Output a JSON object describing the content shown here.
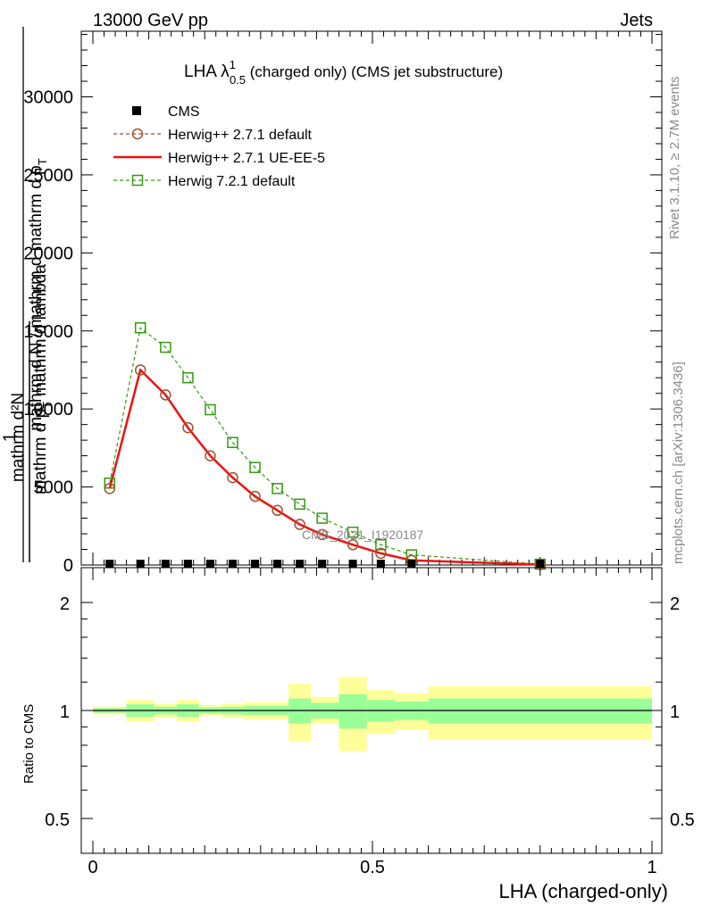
{
  "header": {
    "left": "13000 GeV pp",
    "right": "Jets"
  },
  "plot_title": {
    "main": "LHA λ",
    "sup": "1",
    "sub": "0.5",
    "rest": " (charged only) (CMS jet substructure)"
  },
  "side_text": {
    "rivet": "Rivet 3.1.10, ≥ 2.7M events",
    "mcplots": "mcplots.cern.ch [arXiv:1306.3436]"
  },
  "watermark": "CMS_2021_I1920187",
  "ylabel": {
    "line1": "1",
    "line2a": "mathrm d N / mathrm d",
    "line2b": "mathrm d p",
    "line2c": "T",
    "line3a": "mathrm d²N",
    "line3b": "mathrm d p",
    "line3c": "T",
    "line3d": "mathrm d lambda"
  },
  "ratio_ylabel": "Ratio to CMS",
  "xlabel": "LHA (charged-only)",
  "legend": [
    {
      "name": "CMS",
      "style": "data"
    },
    {
      "name": "Herwig++ 2.7.1 default",
      "style": "circle-dashed"
    },
    {
      "name": "Herwig++ 2.7.1 UE-EE-5",
      "style": "solid"
    },
    {
      "name": "Herwig 7.2.1 default",
      "style": "square-dashed"
    }
  ],
  "colors": {
    "data": "#000000",
    "herwigpp_default": "#a0522d",
    "herwigpp_ueee5": "#ee1111",
    "herwig7": "#339911",
    "band_inner": "#99ff99",
    "band_outer": "#ffff99"
  },
  "chart_data": [
    {
      "type": "line",
      "panel": "main",
      "xlim": [
        0,
        1
      ],
      "ylim": [
        0,
        35000
      ],
      "y_ticks": [
        {
          "v": 0,
          "label": "0"
        },
        {
          "v": 5000,
          "label": "5000"
        },
        {
          "v": 10000,
          "label": "10000"
        },
        {
          "v": 15000,
          "label": "15000"
        },
        {
          "v": 20000,
          "label": "20000"
        },
        {
          "v": 25000,
          "label": "25000"
        },
        {
          "v": 30000,
          "label": "30000"
        }
      ],
      "x": [
        0.03,
        0.085,
        0.13,
        0.17,
        0.21,
        0.25,
        0.29,
        0.33,
        0.37,
        0.41,
        0.465,
        0.515,
        0.57,
        0.8
      ],
      "series": [
        {
          "name": "CMS",
          "values": [
            50,
            50,
            50,
            50,
            50,
            50,
            50,
            50,
            50,
            50,
            50,
            50,
            50,
            50
          ]
        },
        {
          "name": "Herwig++ 2.7.1 default",
          "values": [
            4900,
            12500,
            10900,
            8800,
            7000,
            5600,
            4400,
            3500,
            2600,
            1950,
            1300,
            750,
            300,
            30
          ]
        },
        {
          "name": "Herwig++ 2.7.1 UE-EE-5",
          "values": [
            4900,
            12500,
            10900,
            8800,
            7000,
            5600,
            4400,
            3500,
            2600,
            1950,
            1300,
            750,
            300,
            30
          ]
        },
        {
          "name": "Herwig 7.2.1 default",
          "values": [
            5250,
            15200,
            13950,
            12000,
            9950,
            7850,
            6250,
            4900,
            3900,
            3000,
            2100,
            1300,
            650,
            50
          ]
        }
      ]
    },
    {
      "type": "area",
      "panel": "ratio",
      "xlim": [
        0,
        1
      ],
      "ylim": [
        0.5,
        2.2
      ],
      "y_ticks": [
        {
          "v": 0.5,
          "label": "0.5"
        },
        {
          "v": 1,
          "label": "1"
        },
        {
          "v": 2,
          "label": "2"
        }
      ],
      "x_ticks": [
        {
          "v": 0,
          "label": "0"
        },
        {
          "v": 0.5,
          "label": "0.5"
        },
        {
          "v": 1,
          "label": "1"
        }
      ],
      "bins": [
        {
          "lo": 0.0,
          "hi": 0.06,
          "inner": [
            0.985,
            1.015
          ],
          "outer": [
            0.975,
            1.025
          ]
        },
        {
          "lo": 0.06,
          "hi": 0.11,
          "inner": [
            0.96,
            1.04
          ],
          "outer": [
            0.93,
            1.07
          ]
        },
        {
          "lo": 0.11,
          "hi": 0.15,
          "inner": [
            0.975,
            1.025
          ],
          "outer": [
            0.955,
            1.045
          ]
        },
        {
          "lo": 0.15,
          "hi": 0.19,
          "inner": [
            0.96,
            1.04
          ],
          "outer": [
            0.93,
            1.07
          ]
        },
        {
          "lo": 0.19,
          "hi": 0.23,
          "inner": [
            0.98,
            1.02
          ],
          "outer": [
            0.965,
            1.035
          ]
        },
        {
          "lo": 0.23,
          "hi": 0.27,
          "inner": [
            0.975,
            1.025
          ],
          "outer": [
            0.955,
            1.045
          ]
        },
        {
          "lo": 0.27,
          "hi": 0.31,
          "inner": [
            0.97,
            1.03
          ],
          "outer": [
            0.945,
            1.055
          ]
        },
        {
          "lo": 0.31,
          "hi": 0.35,
          "inner": [
            0.97,
            1.03
          ],
          "outer": [
            0.945,
            1.055
          ]
        },
        {
          "lo": 0.35,
          "hi": 0.39,
          "inner": [
            0.92,
            1.08
          ],
          "outer": [
            0.82,
            1.19
          ]
        },
        {
          "lo": 0.39,
          "hi": 0.44,
          "inner": [
            0.95,
            1.05
          ],
          "outer": [
            0.92,
            1.09
          ]
        },
        {
          "lo": 0.44,
          "hi": 0.49,
          "inner": [
            0.89,
            1.11
          ],
          "outer": [
            0.77,
            1.24
          ]
        },
        {
          "lo": 0.49,
          "hi": 0.54,
          "inner": [
            0.93,
            1.07
          ],
          "outer": [
            0.86,
            1.14
          ]
        },
        {
          "lo": 0.54,
          "hi": 0.6,
          "inner": [
            0.94,
            1.06
          ],
          "outer": [
            0.885,
            1.115
          ]
        },
        {
          "lo": 0.6,
          "hi": 1.0,
          "inner": [
            0.92,
            1.08
          ],
          "outer": [
            0.83,
            1.17
          ]
        }
      ],
      "reference": 1
    }
  ]
}
